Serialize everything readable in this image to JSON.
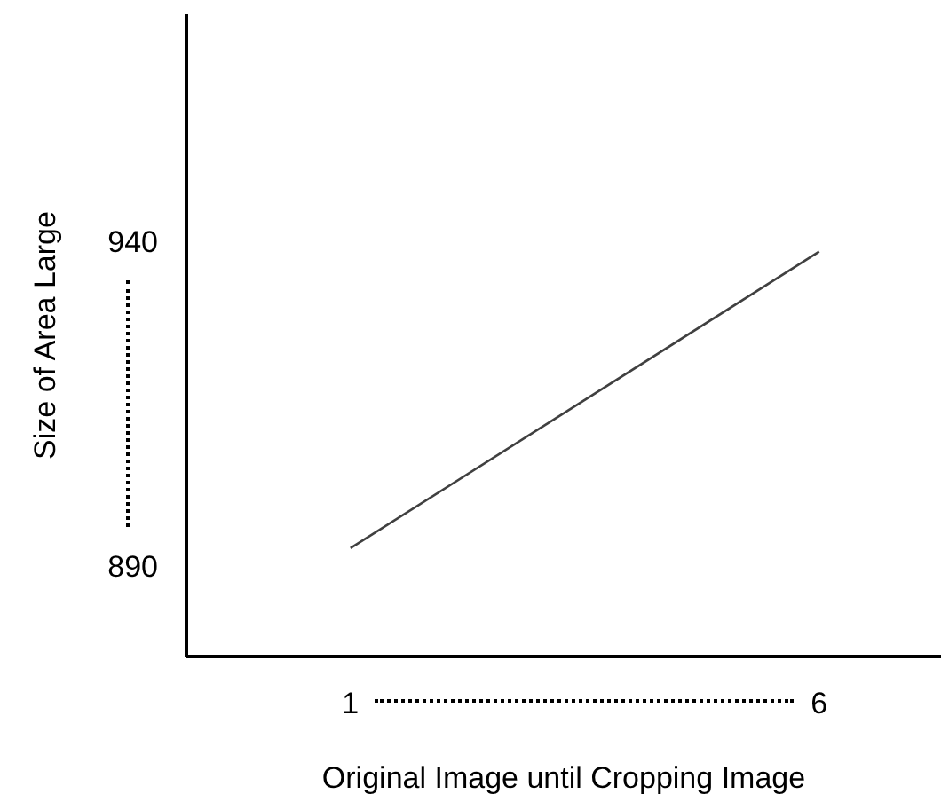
{
  "chart_data": {
    "type": "line",
    "xlabel": "Original Image until Cropping Image",
    "ylabel": "Size of Area Large",
    "x": [
      1,
      6
    ],
    "series": [
      {
        "color": "#404040",
        "values": [
          892.7,
          938.4
        ]
      }
    ],
    "xlim": [
      -0.75,
      7.3
    ],
    "xticks": [
      1,
      6
    ],
    "ylim": [
      876,
      975
    ],
    "yticks": [
      890,
      940
    ],
    "marker": "none",
    "line_style": "solid"
  }
}
